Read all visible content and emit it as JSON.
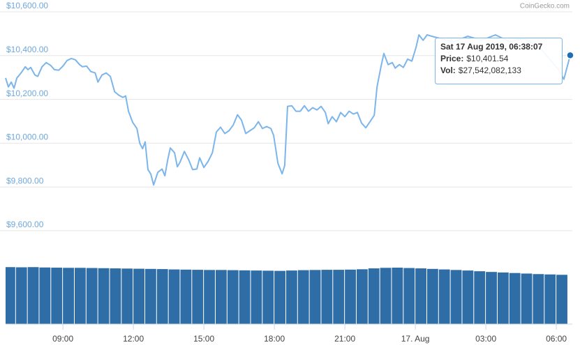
{
  "watermark": "CoinGecko.com",
  "tooltip": {
    "title": "Sat 17 Aug 2019, 06:38:07",
    "price_label": "Price:",
    "price": "$10,401.54",
    "vol_label": "Vol:",
    "vol": "$27,542,082,133"
  },
  "chart_data": [
    {
      "type": "line",
      "xlim": [
        6.56,
        30.68
      ],
      "ylim": [
        9600,
        10600
      ],
      "yticks": [
        {
          "value": 9600,
          "label": "$9,600.00"
        },
        {
          "value": 9800,
          "label": "$9,800.00"
        },
        {
          "value": 10000,
          "label": "$10,000.00"
        },
        {
          "value": 10200,
          "label": "$10,200.00"
        },
        {
          "value": 10400,
          "label": "$10,400.00"
        },
        {
          "value": 10600,
          "label": "$10,600.00"
        }
      ],
      "grid": true,
      "x": [
        6.56,
        6.68,
        6.8,
        6.92,
        7.04,
        7.22,
        7.4,
        7.51,
        7.63,
        7.81,
        7.93,
        8.11,
        8.29,
        8.47,
        8.64,
        8.82,
        9.0,
        9.18,
        9.36,
        9.53,
        9.71,
        9.83,
        10.01,
        10.19,
        10.37,
        10.49,
        10.66,
        10.84,
        11.02,
        11.2,
        11.38,
        11.55,
        11.67,
        11.79,
        11.97,
        12.15,
        12.27,
        12.39,
        12.5,
        12.62,
        12.74,
        12.86,
        13.04,
        13.22,
        13.34,
        13.46,
        13.57,
        13.75,
        13.87,
        13.99,
        14.17,
        14.35,
        14.52,
        14.7,
        14.82,
        15.0,
        15.18,
        15.36,
        15.53,
        15.71,
        15.89,
        16.07,
        16.25,
        16.43,
        16.6,
        16.78,
        16.96,
        17.14,
        17.32,
        17.49,
        17.67,
        17.85,
        17.97,
        18.15,
        18.33,
        18.44,
        18.56,
        18.74,
        18.92,
        19.1,
        19.28,
        19.45,
        19.63,
        19.81,
        19.99,
        20.17,
        20.29,
        20.46,
        20.64,
        20.82,
        21.0,
        21.18,
        21.36,
        21.53,
        21.71,
        21.89,
        22.07,
        22.25,
        22.37,
        22.54,
        22.66,
        22.84,
        23.02,
        23.14,
        23.32,
        23.49,
        23.67,
        23.85,
        24.03,
        24.15,
        24.33,
        24.5,
        24.68,
        25.04,
        25.63,
        26.23,
        26.82,
        27.41,
        28.01,
        28.6,
        29.2,
        29.79,
        30.09,
        30.32,
        30.59
      ],
      "series": [
        {
          "color": "#7cb5ec",
          "values": [
            10298,
            10257,
            10279,
            10251,
            10298,
            10321,
            10349,
            10336,
            10346,
            10311,
            10305,
            10349,
            10368,
            10356,
            10336,
            10333,
            10352,
            10378,
            10387,
            10381,
            10359,
            10349,
            10352,
            10327,
            10321,
            10279,
            10311,
            10321,
            10305,
            10235,
            10219,
            10209,
            10216,
            10146,
            10095,
            10067,
            10000,
            9975,
            10006,
            9879,
            9860,
            9809,
            9867,
            9882,
            9851,
            9924,
            9978,
            9956,
            9892,
            9914,
            9962,
            9924,
            9879,
            9882,
            9933,
            9889,
            9917,
            9956,
            10051,
            10073,
            10044,
            10057,
            10083,
            10130,
            10105,
            10044,
            10057,
            10070,
            10098,
            10067,
            10076,
            10067,
            10035,
            9908,
            9860,
            9898,
            10168,
            10171,
            10146,
            10146,
            10171,
            10146,
            10162,
            10152,
            10168,
            10140,
            10089,
            10121,
            10098,
            10140,
            10121,
            10146,
            10133,
            10140,
            10092,
            10070,
            10098,
            10127,
            10257,
            10352,
            10410,
            10359,
            10368,
            10343,
            10359,
            10346,
            10384,
            10375,
            10438,
            10495,
            10470,
            10495,
            10489,
            10479,
            10463,
            10489,
            10470,
            10495,
            10463,
            10479,
            10448,
            10375,
            10336,
            10292,
            10401.54
          ]
        }
      ]
    },
    {
      "type": "bar",
      "xlim": [
        6.56,
        30.68
      ],
      "xticks": [
        {
          "value": 9,
          "label": "09:00"
        },
        {
          "value": 12,
          "label": "12:00"
        },
        {
          "value": 15,
          "label": "15:00"
        },
        {
          "value": 18,
          "label": "18:00"
        },
        {
          "value": 21,
          "label": "21:00"
        },
        {
          "value": 24,
          "label": "17. Aug"
        },
        {
          "value": 27,
          "label": "03:00"
        },
        {
          "value": 30,
          "label": "06:00"
        }
      ],
      "ylim": [
        0,
        32000000000
      ],
      "x": [
        6.75,
        7.25,
        7.75,
        8.25,
        8.75,
        9.25,
        9.75,
        10.25,
        10.75,
        11.25,
        11.75,
        12.25,
        12.75,
        13.25,
        13.75,
        14.25,
        14.75,
        15.25,
        15.75,
        16.25,
        16.75,
        17.25,
        17.75,
        18.25,
        18.75,
        19.25,
        19.75,
        20.25,
        20.75,
        21.25,
        21.75,
        22.25,
        22.75,
        23.25,
        23.75,
        24.25,
        24.75,
        25.25,
        25.75,
        26.25,
        26.75,
        27.25,
        27.75,
        28.25,
        28.75,
        29.25,
        29.75,
        30.25
      ],
      "series": [
        {
          "color": "#2f6da6",
          "values": [
            31900000000,
            31800000000,
            31900000000,
            31700000000,
            31600000000,
            31500000000,
            31500000000,
            31400000000,
            31300000000,
            31200000000,
            31100000000,
            31000000000,
            30900000000,
            30800000000,
            30600000000,
            30500000000,
            30400000000,
            30300000000,
            30300000000,
            30200000000,
            30100000000,
            30000000000,
            29900000000,
            29800000000,
            30000000000,
            30200000000,
            30300000000,
            30400000000,
            30400000000,
            30500000000,
            30700000000,
            31200000000,
            31500000000,
            31600000000,
            31400000000,
            31200000000,
            30900000000,
            30600000000,
            30300000000,
            30000000000,
            29600000000,
            29200000000,
            28900000000,
            28600000000,
            28300000000,
            28000000000,
            27800000000,
            27600000000
          ]
        }
      ]
    }
  ]
}
